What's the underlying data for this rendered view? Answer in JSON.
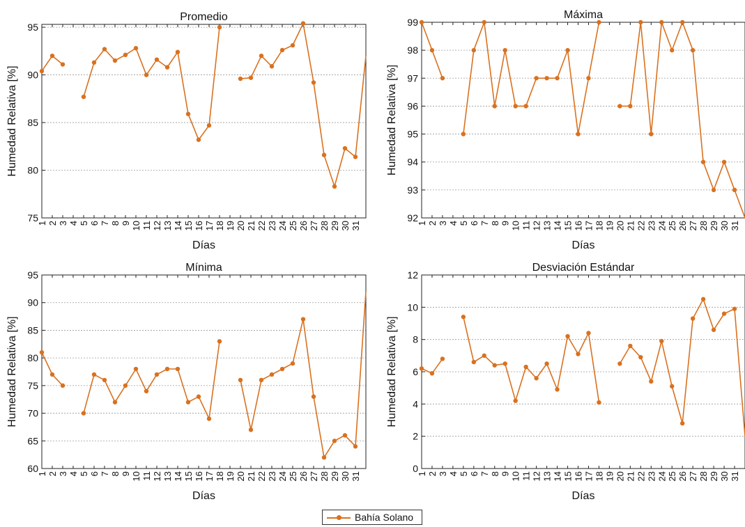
{
  "colors": {
    "series": "#D9711F",
    "grid": "#9a9a9a",
    "axis": "#222222"
  },
  "legend": {
    "label": "Bahía Solano"
  },
  "chart_data": [
    {
      "type": "line",
      "title": "Promedio",
      "xlabel": "Días",
      "ylabel": "Humedad Relativa [%]",
      "x": [
        1,
        2,
        3,
        4,
        5,
        6,
        7,
        8,
        9,
        10,
        11,
        12,
        13,
        14,
        15,
        16,
        17,
        18,
        19,
        20,
        21,
        22,
        23,
        24,
        25,
        26,
        27,
        28,
        29,
        30,
        31,
        32
      ],
      "xticks": [
        "1",
        "2",
        "3",
        "4",
        "5",
        "6",
        "7",
        "8",
        "9",
        "10",
        "11",
        "12",
        "13",
        "14",
        "15",
        "16",
        "17",
        "18",
        "19",
        "20",
        "21",
        "22",
        "23",
        "24",
        "25",
        "26",
        "27",
        "28",
        "29",
        "30",
        "31"
      ],
      "yticks": [
        "75",
        "80",
        "85",
        "90",
        "95"
      ],
      "ylim": [
        75,
        95.3
      ],
      "series": [
        {
          "name": "Bahía Solano",
          "values": [
            90.4,
            92.0,
            91.1,
            null,
            87.7,
            91.3,
            92.7,
            91.5,
            92.1,
            92.8,
            90.0,
            91.6,
            90.8,
            92.4,
            85.9,
            83.2,
            84.7,
            95.0,
            null,
            89.6,
            89.7,
            92.0,
            90.9,
            92.6,
            93.1,
            95.4,
            89.2,
            81.6,
            78.3,
            82.3,
            81.4,
            92.0
          ]
        }
      ],
      "grid": true
    },
    {
      "type": "line",
      "title": "Máxima",
      "xlabel": "Días",
      "ylabel": "Humedad Relativa [%]",
      "x": [
        1,
        2,
        3,
        4,
        5,
        6,
        7,
        8,
        9,
        10,
        11,
        12,
        13,
        14,
        15,
        16,
        17,
        18,
        19,
        20,
        21,
        22,
        23,
        24,
        25,
        26,
        27,
        28,
        29,
        30,
        31,
        32
      ],
      "xticks": [
        "1",
        "2",
        "3",
        "4",
        "5",
        "6",
        "7",
        "8",
        "9",
        "10",
        "11",
        "12",
        "13",
        "14",
        "15",
        "16",
        "17",
        "18",
        "19",
        "20",
        "21",
        "22",
        "23",
        "24",
        "25",
        "26",
        "27",
        "28",
        "29",
        "30",
        "31"
      ],
      "yticks": [
        "92",
        "93",
        "94",
        "95",
        "96",
        "97",
        "98",
        "99"
      ],
      "ylim": [
        92,
        99
      ],
      "series": [
        {
          "name": "Bahía Solano",
          "values": [
            99,
            98,
            97,
            null,
            95,
            98,
            99,
            96,
            98,
            96,
            96,
            97,
            97,
            97,
            98,
            95,
            97,
            99,
            null,
            96,
            96,
            99,
            95,
            99,
            98,
            99,
            98,
            94,
            93,
            94,
            93,
            92
          ]
        }
      ],
      "grid": true
    },
    {
      "type": "line",
      "title": "Mínima",
      "xlabel": "Días",
      "ylabel": "Humedad Relativa [%]",
      "x": [
        1,
        2,
        3,
        4,
        5,
        6,
        7,
        8,
        9,
        10,
        11,
        12,
        13,
        14,
        15,
        16,
        17,
        18,
        19,
        20,
        21,
        22,
        23,
        24,
        25,
        26,
        27,
        28,
        29,
        30,
        31,
        32
      ],
      "xticks": [
        "1",
        "2",
        "3",
        "4",
        "5",
        "6",
        "7",
        "8",
        "9",
        "10",
        "11",
        "12",
        "13",
        "14",
        "15",
        "16",
        "17",
        "18",
        "19",
        "20",
        "21",
        "22",
        "23",
        "24",
        "25",
        "26",
        "27",
        "28",
        "29",
        "30",
        "31"
      ],
      "yticks": [
        "60",
        "65",
        "70",
        "75",
        "80",
        "85",
        "90",
        "95"
      ],
      "ylim": [
        60,
        95
      ],
      "series": [
        {
          "name": "Bahía Solano",
          "values": [
            81,
            77,
            75,
            null,
            70,
            77,
            76,
            72,
            75,
            78,
            74,
            77,
            78,
            78,
            72,
            73,
            69,
            83,
            null,
            76,
            67,
            76,
            77,
            78,
            79,
            87,
            73,
            62,
            65,
            66,
            64,
            92
          ]
        }
      ],
      "grid": true
    },
    {
      "type": "line",
      "title": "Desviación Estándar",
      "xlabel": "Días",
      "ylabel": "Humedad Relativa [%]",
      "x": [
        1,
        2,
        3,
        4,
        5,
        6,
        7,
        8,
        9,
        10,
        11,
        12,
        13,
        14,
        15,
        16,
        17,
        18,
        19,
        20,
        21,
        22,
        23,
        24,
        25,
        26,
        27,
        28,
        29,
        30,
        31,
        32
      ],
      "xticks": [
        "1",
        "2",
        "3",
        "4",
        "5",
        "6",
        "7",
        "8",
        "9",
        "10",
        "11",
        "12",
        "13",
        "14",
        "15",
        "16",
        "17",
        "18",
        "19",
        "20",
        "21",
        "22",
        "23",
        "24",
        "25",
        "26",
        "27",
        "28",
        "29",
        "30",
        "31"
      ],
      "yticks": [
        "0",
        "2",
        "4",
        "6",
        "8",
        "10",
        "12"
      ],
      "ylim": [
        0,
        12
      ],
      "series": [
        {
          "name": "Bahía Solano",
          "values": [
            6.2,
            5.9,
            6.8,
            null,
            9.4,
            6.6,
            7.0,
            6.4,
            6.5,
            4.2,
            6.3,
            5.6,
            6.5,
            4.9,
            8.2,
            7.1,
            8.4,
            4.1,
            null,
            6.5,
            7.6,
            6.9,
            5.4,
            7.9,
            5.1,
            2.8,
            9.3,
            10.5,
            8.6,
            9.6,
            9.9,
            2.0
          ]
        }
      ],
      "grid": true
    }
  ]
}
